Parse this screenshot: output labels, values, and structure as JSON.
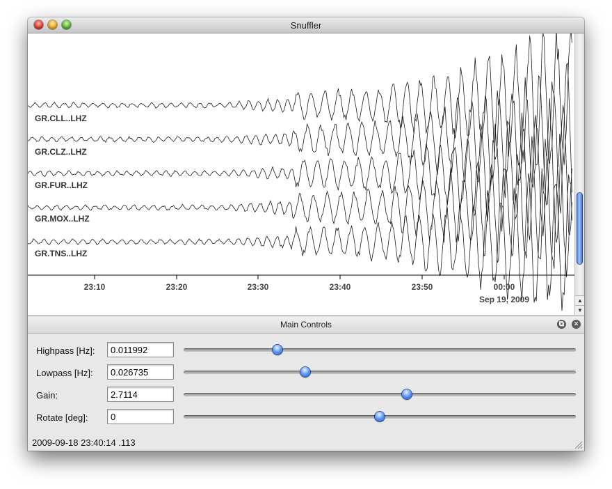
{
  "window": {
    "title": "Snuffler"
  },
  "traces": [
    {
      "label": "GR.CLL..LHZ"
    },
    {
      "label": "GR.CLZ..LHZ"
    },
    {
      "label": "GR.FUR..LHZ"
    },
    {
      "label": "GR.MOX..LHZ"
    },
    {
      "label": "GR.TNS..LHZ"
    }
  ],
  "time_axis": {
    "ticks": [
      "23:10",
      "23:20",
      "23:30",
      "23:40",
      "23:50",
      "00:00"
    ],
    "date_label": "Sep 19, 2009"
  },
  "panel": {
    "title": "Main Controls",
    "controls": [
      {
        "label": "Highpass [Hz]:",
        "value": "0.011992",
        "slider_fraction": 0.24
      },
      {
        "label": "Lowpass [Hz]:",
        "value": "0.026735",
        "slider_fraction": 0.31
      },
      {
        "label": "Gain:",
        "value": "2.7114",
        "slider_fraction": 0.57
      },
      {
        "label": "Rotate [deg]:",
        "value": "0",
        "slider_fraction": 0.5
      }
    ]
  },
  "status": {
    "text": "2009-09-18 23:40:14 .113"
  },
  "colors": {
    "trace": "#1a1a1a",
    "accent": "#3a6fd6"
  },
  "icons": {
    "float_button": "restore-icon",
    "close_button": "close-icon",
    "scroll_up": "arrow-up-icon",
    "scroll_down": "arrow-down-icon"
  }
}
